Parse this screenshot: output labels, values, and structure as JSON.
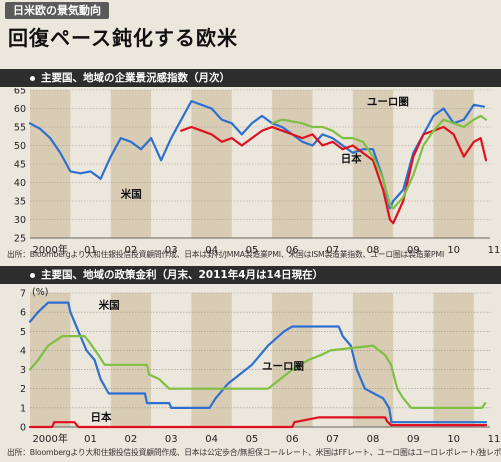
{
  "header": {
    "tag": "日米欧の景気動向",
    "headline": "回復ペース鈍化する欧米"
  },
  "colors": {
    "us": "#2e6fd0",
    "japan": "#e01020",
    "euro": "#7fbf44",
    "band": "#d8ccb4",
    "background": "#ece7dc"
  },
  "chart_data": [
    {
      "type": "line",
      "title": "主要国、地域の企業景況感指数（月次）",
      "source": "出所：Bloombergより大和住銀投信投資顧問作成、日本は野村/JMMA製造業PMI、米国はISM製造業指数、ユーロ圏は製造業PMI",
      "x_tick_labels": [
        "2000年",
        "01",
        "02",
        "03",
        "04",
        "05",
        "06",
        "07",
        "08",
        "09",
        "10",
        "11"
      ],
      "xlim": [
        2000,
        2011.4
      ],
      "ylim": [
        25,
        65
      ],
      "yticks": [
        25,
        30,
        35,
        40,
        45,
        50,
        55,
        60,
        65
      ],
      "grid": true,
      "series": [
        {
          "name": "米国",
          "color": "us",
          "points": [
            [
              2000.0,
              56
            ],
            [
              2000.25,
              54.5
            ],
            [
              2000.5,
              52
            ],
            [
              2000.75,
              48
            ],
            [
              2001.0,
              43
            ],
            [
              2001.25,
              42.5
            ],
            [
              2001.5,
              43
            ],
            [
              2001.75,
              41
            ],
            [
              2002.0,
              47
            ],
            [
              2002.25,
              52
            ],
            [
              2002.5,
              51
            ],
            [
              2002.75,
              49
            ],
            [
              2003.0,
              52
            ],
            [
              2003.25,
              46
            ],
            [
              2003.5,
              52
            ],
            [
              2003.75,
              57
            ],
            [
              2004.0,
              62
            ],
            [
              2004.25,
              61
            ],
            [
              2004.5,
              60
            ],
            [
              2004.75,
              57
            ],
            [
              2005.0,
              56
            ],
            [
              2005.25,
              53
            ],
            [
              2005.5,
              56
            ],
            [
              2005.75,
              58
            ],
            [
              2006.0,
              56
            ],
            [
              2006.25,
              55
            ],
            [
              2006.5,
              53
            ],
            [
              2006.75,
              51
            ],
            [
              2007.0,
              50
            ],
            [
              2007.25,
              53
            ],
            [
              2007.5,
              52
            ],
            [
              2007.75,
              50
            ],
            [
              2008.0,
              48
            ],
            [
              2008.25,
              49
            ],
            [
              2008.5,
              49
            ],
            [
              2008.75,
              41
            ],
            [
              2008.92,
              33
            ],
            [
              2009.0,
              35
            ],
            [
              2009.25,
              38
            ],
            [
              2009.5,
              48
            ],
            [
              2009.75,
              53
            ],
            [
              2010.0,
              58
            ],
            [
              2010.25,
              60
            ],
            [
              2010.5,
              56
            ],
            [
              2010.75,
              57
            ],
            [
              2011.0,
              61
            ],
            [
              2011.25,
              60.5
            ]
          ]
        },
        {
          "name": "日本",
          "color": "japan",
          "points": [
            [
              2003.75,
              54
            ],
            [
              2004.0,
              55
            ],
            [
              2004.25,
              54
            ],
            [
              2004.5,
              53
            ],
            [
              2004.75,
              51
            ],
            [
              2005.0,
              52
            ],
            [
              2005.25,
              50
            ],
            [
              2005.5,
              52
            ],
            [
              2005.75,
              54
            ],
            [
              2006.0,
              55
            ],
            [
              2006.25,
              54
            ],
            [
              2006.5,
              53
            ],
            [
              2006.75,
              52
            ],
            [
              2007.0,
              53
            ],
            [
              2007.25,
              50
            ],
            [
              2007.5,
              51
            ],
            [
              2007.75,
              49
            ],
            [
              2008.0,
              50
            ],
            [
              2008.25,
              48
            ],
            [
              2008.5,
              46
            ],
            [
              2008.75,
              38
            ],
            [
              2008.92,
              30
            ],
            [
              2009.0,
              29
            ],
            [
              2009.25,
              35
            ],
            [
              2009.5,
              47
            ],
            [
              2009.75,
              53
            ],
            [
              2010.0,
              54
            ],
            [
              2010.25,
              55
            ],
            [
              2010.5,
              53
            ],
            [
              2010.75,
              47
            ],
            [
              2011.0,
              51
            ],
            [
              2011.17,
              52
            ],
            [
              2011.3,
              46
            ]
          ]
        },
        {
          "name": "ユーロ圏",
          "color": "euro",
          "points": [
            [
              2006.0,
              56
            ],
            [
              2006.25,
              57
            ],
            [
              2006.5,
              56.5
            ],
            [
              2006.75,
              56
            ],
            [
              2007.0,
              55
            ],
            [
              2007.25,
              55
            ],
            [
              2007.5,
              54
            ],
            [
              2007.75,
              52
            ],
            [
              2008.0,
              52
            ],
            [
              2008.25,
              51
            ],
            [
              2008.5,
              47
            ],
            [
              2008.75,
              41
            ],
            [
              2008.92,
              34
            ],
            [
              2009.0,
              33
            ],
            [
              2009.25,
              36
            ],
            [
              2009.5,
              42
            ],
            [
              2009.75,
              50
            ],
            [
              2010.0,
              54
            ],
            [
              2010.25,
              57
            ],
            [
              2010.5,
              56
            ],
            [
              2010.75,
              55
            ],
            [
              2011.0,
              57
            ],
            [
              2011.17,
              58
            ],
            [
              2011.3,
              57
            ]
          ]
        }
      ],
      "labels": {
        "us": "米国",
        "japan": "日本",
        "euro": "ユーロ圏"
      }
    },
    {
      "type": "line",
      "title": "主要国、地域の政策金利（月末、2011年4月は14日現在）",
      "source": "出所：Bloombergより大和住銀投信投資顧問作成、日本は公定歩合/無担保コールレート、米国はFFレート、ユーロ圏はユーロレポレート/独レポレート",
      "x_tick_labels": [
        "2000年",
        "01",
        "02",
        "03",
        "04",
        "05",
        "06",
        "07",
        "08",
        "09",
        "10",
        "11"
      ],
      "y_unit": "(%)",
      "xlim": [
        2000,
        2011.4
      ],
      "ylim": [
        0,
        7
      ],
      "yticks": [
        0,
        1,
        2,
        3,
        4,
        5,
        6,
        7
      ],
      "grid": true,
      "series": [
        {
          "name": "米国",
          "color": "us",
          "points": [
            [
              2000.0,
              5.5
            ],
            [
              2000.1,
              5.75
            ],
            [
              2000.2,
              6.0
            ],
            [
              2000.45,
              6.5
            ],
            [
              2000.95,
              6.5
            ],
            [
              2001.0,
              6.0
            ],
            [
              2001.2,
              5.0
            ],
            [
              2001.4,
              4.0
            ],
            [
              2001.6,
              3.5
            ],
            [
              2001.75,
              2.5
            ],
            [
              2001.95,
              1.75
            ],
            [
              2002.85,
              1.75
            ],
            [
              2002.9,
              1.25
            ],
            [
              2003.45,
              1.25
            ],
            [
              2003.5,
              1.0
            ],
            [
              2004.45,
              1.0
            ],
            [
              2004.6,
              1.5
            ],
            [
              2004.9,
              2.25
            ],
            [
              2005.2,
              2.75
            ],
            [
              2005.5,
              3.25
            ],
            [
              2005.9,
              4.25
            ],
            [
              2006.3,
              5.0
            ],
            [
              2006.5,
              5.25
            ],
            [
              2007.65,
              5.25
            ],
            [
              2007.75,
              4.75
            ],
            [
              2007.95,
              4.25
            ],
            [
              2008.1,
              3.0
            ],
            [
              2008.3,
              2.0
            ],
            [
              2008.75,
              1.5
            ],
            [
              2008.9,
              1.0
            ],
            [
              2008.96,
              0.25
            ],
            [
              2011.3,
              0.25
            ]
          ]
        },
        {
          "name": "ユーロ圏",
          "color": "euro",
          "points": [
            [
              2000.0,
              3.0
            ],
            [
              2000.2,
              3.5
            ],
            [
              2000.45,
              4.25
            ],
            [
              2000.8,
              4.75
            ],
            [
              2001.35,
              4.75
            ],
            [
              2001.45,
              4.5
            ],
            [
              2001.7,
              3.75
            ],
            [
              2001.85,
              3.25
            ],
            [
              2002.9,
              3.25
            ],
            [
              2002.95,
              2.75
            ],
            [
              2003.2,
              2.5
            ],
            [
              2003.45,
              2.0
            ],
            [
              2005.9,
              2.0
            ],
            [
              2006.2,
              2.5
            ],
            [
              2006.5,
              3.0
            ],
            [
              2006.9,
              3.5
            ],
            [
              2007.2,
              3.75
            ],
            [
              2007.45,
              4.0
            ],
            [
              2008.5,
              4.25
            ],
            [
              2008.8,
              3.75
            ],
            [
              2008.95,
              3.25
            ],
            [
              2009.1,
              2.0
            ],
            [
              2009.25,
              1.5
            ],
            [
              2009.35,
              1.25
            ],
            [
              2009.45,
              1.0
            ],
            [
              2011.2,
              1.0
            ],
            [
              2011.28,
              1.25
            ]
          ]
        },
        {
          "name": "日本",
          "color": "japan",
          "points": [
            [
              2000.0,
              0.0
            ],
            [
              2000.55,
              0.0
            ],
            [
              2000.6,
              0.25
            ],
            [
              2001.1,
              0.25
            ],
            [
              2001.2,
              0.0
            ],
            [
              2006.5,
              0.0
            ],
            [
              2006.55,
              0.25
            ],
            [
              2007.15,
              0.5
            ],
            [
              2008.8,
              0.5
            ],
            [
              2008.85,
              0.3
            ],
            [
              2008.95,
              0.1
            ],
            [
              2011.3,
              0.1
            ]
          ]
        }
      ],
      "labels": {
        "us": "米国",
        "japan": "日本",
        "euro": "ユーロ圏"
      }
    }
  ]
}
